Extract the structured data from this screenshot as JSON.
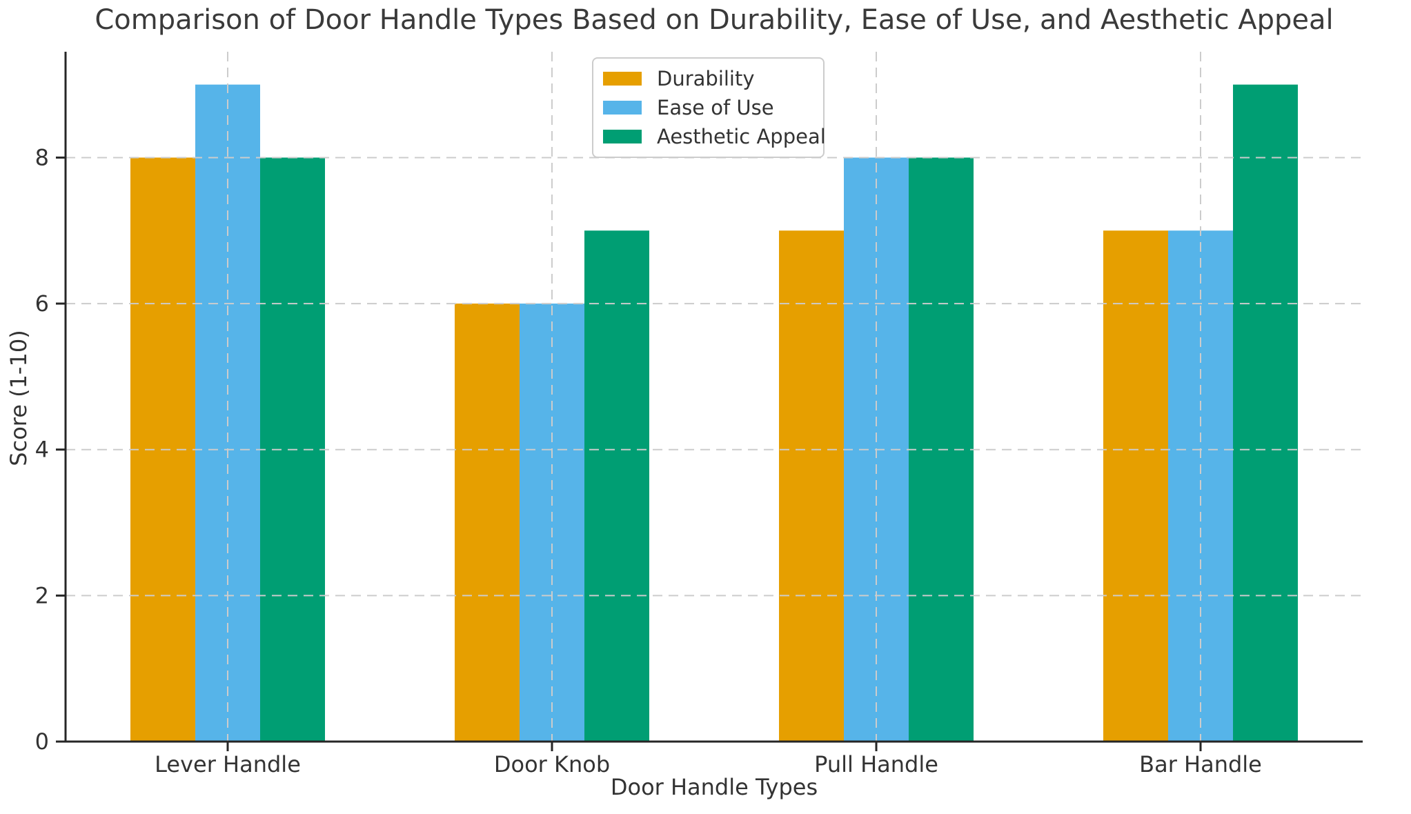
{
  "chart_data": {
    "type": "bar",
    "title": "Comparison of Door Handle Types Based on Durability, Ease of Use, and Aesthetic Appeal",
    "xlabel": "Door Handle Types",
    "ylabel": "Score (1-10)",
    "categories": [
      "Lever Handle",
      "Door Knob",
      "Pull Handle",
      "Bar Handle"
    ],
    "series": [
      {
        "name": "Durability",
        "color": "#E69F00",
        "values": [
          8,
          6,
          7,
          7
        ]
      },
      {
        "name": "Ease of Use",
        "color": "#56B4E9",
        "values": [
          9,
          6,
          8,
          7
        ]
      },
      {
        "name": "Aesthetic Appeal",
        "color": "#009E73",
        "values": [
          8,
          7,
          8,
          9
        ]
      }
    ],
    "yticks": [
      0,
      2,
      4,
      6,
      8
    ],
    "ylim": [
      0,
      9.45
    ],
    "grid": {
      "visible": true,
      "style": "dashed",
      "color": "#cccccc",
      "axes": "both",
      "above_bars": true
    },
    "legend": {
      "position": "upper center"
    },
    "text_color": "#333333",
    "spine_color": "#262626"
  }
}
